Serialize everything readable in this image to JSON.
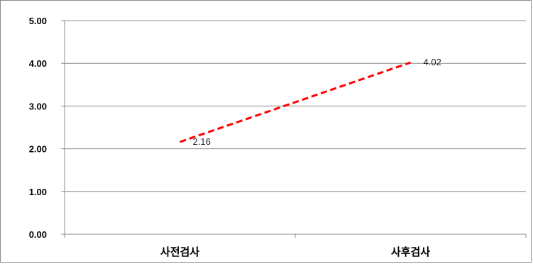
{
  "chart_data": {
    "type": "line",
    "categories": [
      "사전검사",
      "사후검사"
    ],
    "series": [
      {
        "values": [
          2.16,
          4.02
        ],
        "color": "#ff0000",
        "style": "dashed"
      }
    ],
    "data_labels": [
      "2.16",
      "4.02"
    ],
    "yticks": [
      "0.00",
      "1.00",
      "2.00",
      "3.00",
      "4.00",
      "5.00"
    ],
    "ylim": [
      0,
      5
    ],
    "grid": true,
    "title": "",
    "xlabel": "",
    "ylabel": ""
  }
}
